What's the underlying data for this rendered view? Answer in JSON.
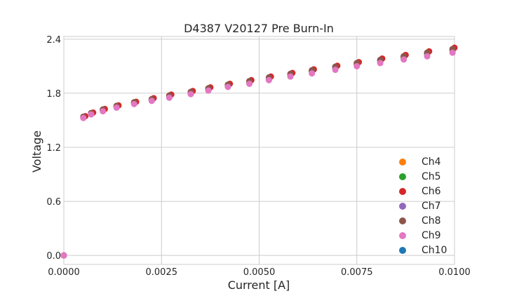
{
  "chart_data": {
    "type": "scatter",
    "title": "D4387 V20127 Pre Burn-In",
    "xlabel": "Current [A]",
    "ylabel": "Voltage",
    "xlim": [
      0,
      0.01
    ],
    "ylim": [
      -0.1,
      2.43
    ],
    "xticks": [
      0,
      0.0025,
      0.005,
      0.0075,
      0.01
    ],
    "xtick_labels": [
      "0.0000",
      "0.0025",
      "0.0050",
      "0.0075",
      "0.0100"
    ],
    "yticks": [
      0.0,
      0.6,
      1.2,
      1.8,
      2.4
    ],
    "ytick_labels": [
      "0.0",
      "0.6",
      "1.2",
      "1.8",
      "2.4"
    ],
    "grid": true,
    "legend_position": "bottom-right",
    "series": [
      {
        "name": "Ch4",
        "color": "#ff7f0e",
        "x": [
          0,
          0.0005,
          0.0007,
          0.001,
          0.00135,
          0.0018,
          0.00225,
          0.0027,
          0.00325,
          0.0037,
          0.0042,
          0.00475,
          0.00525,
          0.0058,
          0.00635,
          0.00695,
          0.0075,
          0.0081,
          0.0087,
          0.0093,
          0.00995
        ],
        "y": [
          0,
          1.53,
          1.575,
          1.61,
          1.65,
          1.69,
          1.725,
          1.76,
          1.8,
          1.84,
          1.88,
          1.92,
          1.96,
          2.0,
          2.04,
          2.08,
          2.12,
          2.155,
          2.195,
          2.235,
          2.275
        ]
      },
      {
        "name": "Ch5",
        "color": "#2ca02c",
        "x": [
          0,
          0.0005,
          0.0007,
          0.001,
          0.00135,
          0.0018,
          0.00225,
          0.0027,
          0.00325,
          0.0037,
          0.0042,
          0.00475,
          0.00525,
          0.0058,
          0.00635,
          0.00695,
          0.0075,
          0.0081,
          0.0087,
          0.0093,
          0.00995
        ],
        "y": [
          0,
          1.53,
          1.575,
          1.61,
          1.65,
          1.69,
          1.725,
          1.76,
          1.8,
          1.84,
          1.88,
          1.92,
          1.96,
          2.0,
          2.04,
          2.08,
          2.12,
          2.155,
          2.195,
          2.235,
          2.275
        ]
      },
      {
        "name": "Ch6",
        "color": "#d62728",
        "x": [
          0,
          0.00055,
          0.00075,
          0.00105,
          0.0014,
          0.00185,
          0.0023,
          0.00275,
          0.0033,
          0.00375,
          0.00425,
          0.0048,
          0.0053,
          0.00585,
          0.0064,
          0.007,
          0.00755,
          0.00815,
          0.00875,
          0.00935,
          0.01
        ],
        "y": [
          0,
          1.545,
          1.585,
          1.625,
          1.665,
          1.705,
          1.745,
          1.785,
          1.825,
          1.865,
          1.905,
          1.945,
          1.985,
          2.025,
          2.065,
          2.105,
          2.145,
          2.185,
          2.225,
          2.265,
          2.305
        ]
      },
      {
        "name": "Ch7",
        "color": "#9467bd",
        "x": [
          0,
          0.0005,
          0.0007,
          0.001,
          0.00135,
          0.0018,
          0.00225,
          0.0027,
          0.00325,
          0.0037,
          0.0042,
          0.00475,
          0.00525,
          0.0058,
          0.00635,
          0.00695,
          0.0075,
          0.0081,
          0.0087,
          0.0093,
          0.00995
        ],
        "y": [
          0,
          1.535,
          1.58,
          1.615,
          1.655,
          1.695,
          1.73,
          1.77,
          1.81,
          1.85,
          1.89,
          1.93,
          1.97,
          2.01,
          2.05,
          2.09,
          2.13,
          2.17,
          2.21,
          2.25,
          2.29
        ]
      },
      {
        "name": "Ch8",
        "color": "#8c564b",
        "x": [
          0,
          0.0005,
          0.0007,
          0.001,
          0.00135,
          0.0018,
          0.00225,
          0.0027,
          0.00325,
          0.0037,
          0.0042,
          0.00475,
          0.00525,
          0.0058,
          0.00635,
          0.00695,
          0.0075,
          0.0081,
          0.0087,
          0.0093,
          0.00995
        ],
        "y": [
          0,
          1.54,
          1.58,
          1.62,
          1.66,
          1.7,
          1.735,
          1.775,
          1.815,
          1.855,
          1.895,
          1.935,
          1.975,
          2.015,
          2.055,
          2.095,
          2.135,
          2.17,
          2.21,
          2.25,
          2.29
        ]
      },
      {
        "name": "Ch9",
        "color": "#e377c2",
        "x": [
          0,
          0.0005,
          0.0007,
          0.001,
          0.00135,
          0.0018,
          0.00225,
          0.0027,
          0.00325,
          0.0037,
          0.0042,
          0.00475,
          0.00525,
          0.0058,
          0.00635,
          0.00695,
          0.0075,
          0.0081,
          0.0087,
          0.0093,
          0.00995
        ],
        "y": [
          0,
          1.525,
          1.565,
          1.6,
          1.64,
          1.68,
          1.715,
          1.75,
          1.79,
          1.83,
          1.87,
          1.905,
          1.945,
          1.985,
          2.02,
          2.06,
          2.1,
          2.135,
          2.175,
          2.21,
          2.25
        ]
      },
      {
        "name": "Ch10",
        "color": "#1f77b4",
        "x": [],
        "y": []
      }
    ]
  }
}
